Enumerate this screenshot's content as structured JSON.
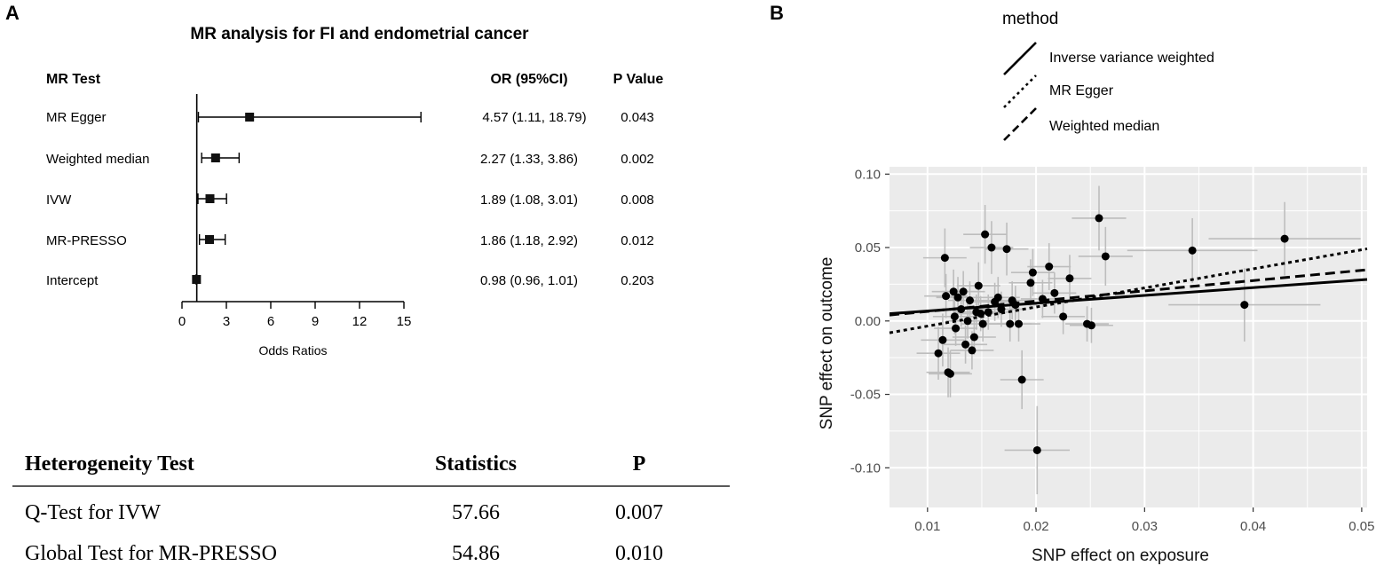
{
  "panel_a": {
    "letter": "A",
    "title": "MR analysis for FI and endometrial cancer",
    "headers": {
      "test": "MR Test",
      "or": "OR (95%CI)",
      "p": "P Value"
    },
    "x_ticks": [
      "0",
      "3",
      "6",
      "9",
      "12",
      "15"
    ],
    "x_label": "Odds Ratios"
  },
  "panel_b": {
    "letter": "B",
    "legend_title": "method",
    "legend": [
      {
        "label": "Inverse variance weighted",
        "dash": "solid"
      },
      {
        "label": "MR Egger",
        "dash": "dotted"
      },
      {
        "label": "Weighted median",
        "dash": "dashed"
      }
    ],
    "x_label": "SNP effect on exposure",
    "y_label": "SNP effect on outcome",
    "x_ticks": [
      "0.01",
      "0.02",
      "0.03",
      "0.04",
      "0.05"
    ],
    "y_ticks": [
      "0.10",
      "0.05",
      "0.00",
      "-0.05",
      "-0.10"
    ]
  },
  "heterogeneity": {
    "headers": {
      "test": "Heterogeneity Test",
      "stat": "Statistics",
      "p": "P"
    },
    "rows": [
      {
        "test": "Q-Test for IVW",
        "stat": "57.66",
        "p": "0.007"
      },
      {
        "test": "Global Test for MR-PRESSO",
        "stat": "54.86",
        "p": "0.010"
      }
    ]
  },
  "colors": {
    "panel_bg": "#ebebeb",
    "grid": "#ffffff",
    "point": "#000000",
    "errorbar": "#bdbdbd"
  },
  "chart_data": [
    {
      "type": "forest",
      "title": "MR analysis for FI and endometrial cancer",
      "xlabel": "Odds Ratios",
      "xlim": [
        0,
        15
      ],
      "reference_line": 1,
      "rows": [
        {
          "test": "MR Egger",
          "or": 4.57,
          "lo": 1.11,
          "hi": 18.79,
          "or_text": "4.57 (1.11, 18.79)",
          "p": "0.043"
        },
        {
          "test": "Weighted median",
          "or": 2.27,
          "lo": 1.33,
          "hi": 3.86,
          "or_text": "2.27 (1.33, 3.86)",
          "p": "0.002"
        },
        {
          "test": "IVW",
          "or": 1.89,
          "lo": 1.08,
          "hi": 3.01,
          "or_text": "1.89 (1.08, 3.01)",
          "p": "0.008"
        },
        {
          "test": "MR-PRESSO",
          "or": 1.86,
          "lo": 1.18,
          "hi": 2.92,
          "or_text": "1.86 (1.18, 2.92)",
          "p": "0.012"
        },
        {
          "test": "Intercept",
          "or": 0.98,
          "lo": 0.96,
          "hi": 1.01,
          "or_text": "0.98 (0.96, 1.01)",
          "p": "0.203"
        }
      ]
    },
    {
      "type": "scatter",
      "xlabel": "SNP effect on exposure",
      "ylabel": "SNP effect on outcome",
      "xlim": [
        0.0065,
        0.0505
      ],
      "ylim": [
        -0.127,
        0.105
      ],
      "x_ticks": [
        0.01,
        0.02,
        0.03,
        0.04,
        0.05
      ],
      "y_ticks": [
        0.1,
        0.05,
        0,
        -0.05,
        -0.1
      ],
      "lines": [
        {
          "method": "Inverse variance weighted",
          "dash": "solid",
          "slope": 0.53,
          "intercept": 0.0015
        },
        {
          "method": "MR Egger",
          "dash": "dotted",
          "slope": 1.3,
          "intercept": -0.0165
        },
        {
          "method": "Weighted median",
          "dash": "dashed",
          "slope": 0.7,
          "intercept": -0.0005
        }
      ],
      "points": [
        {
          "x": 0.011,
          "y": -0.022,
          "xe": 0.002,
          "ye": 0.018
        },
        {
          "x": 0.0114,
          "y": -0.013,
          "xe": 0.002,
          "ye": 0.018
        },
        {
          "x": 0.0116,
          "y": 0.043,
          "xe": 0.002,
          "ye": 0.02
        },
        {
          "x": 0.0117,
          "y": 0.017,
          "xe": 0.002,
          "ye": 0.015
        },
        {
          "x": 0.0119,
          "y": -0.035,
          "xe": 0.002,
          "ye": 0.017
        },
        {
          "x": 0.0121,
          "y": -0.036,
          "xe": 0.002,
          "ye": 0.016
        },
        {
          "x": 0.0124,
          "y": 0.02,
          "xe": 0.002,
          "ye": 0.015
        },
        {
          "x": 0.0125,
          "y": 0.003,
          "xe": 0.002,
          "ye": 0.012
        },
        {
          "x": 0.0126,
          "y": -0.005,
          "xe": 0.002,
          "ye": 0.012
        },
        {
          "x": 0.0128,
          "y": 0.016,
          "xe": 0.002,
          "ye": 0.014
        },
        {
          "x": 0.0131,
          "y": 0.008,
          "xe": 0.002,
          "ye": 0.012
        },
        {
          "x": 0.0133,
          "y": 0.02,
          "xe": 0.002,
          "ye": 0.014
        },
        {
          "x": 0.0135,
          "y": -0.016,
          "xe": 0.002,
          "ye": 0.013
        },
        {
          "x": 0.0137,
          "y": 0.0,
          "xe": 0.002,
          "ye": 0.012
        },
        {
          "x": 0.0139,
          "y": 0.014,
          "xe": 0.002,
          "ye": 0.013
        },
        {
          "x": 0.0141,
          "y": -0.02,
          "xe": 0.002,
          "ye": 0.013
        },
        {
          "x": 0.0143,
          "y": -0.011,
          "xe": 0.002,
          "ye": 0.012
        },
        {
          "x": 0.0145,
          "y": 0.006,
          "xe": 0.002,
          "ye": 0.012
        },
        {
          "x": 0.0147,
          "y": 0.024,
          "xe": 0.002,
          "ye": 0.016
        },
        {
          "x": 0.0149,
          "y": 0.005,
          "xe": 0.002,
          "ye": 0.012
        },
        {
          "x": 0.0151,
          "y": -0.002,
          "xe": 0.002,
          "ye": 0.012
        },
        {
          "x": 0.0153,
          "y": 0.059,
          "xe": 0.002,
          "ye": 0.02
        },
        {
          "x": 0.0156,
          "y": 0.006,
          "xe": 0.002,
          "ye": 0.012
        },
        {
          "x": 0.0159,
          "y": 0.05,
          "xe": 0.002,
          "ye": 0.018
        },
        {
          "x": 0.0162,
          "y": 0.013,
          "xe": 0.002,
          "ye": 0.013
        },
        {
          "x": 0.0165,
          "y": 0.016,
          "xe": 0.002,
          "ye": 0.014
        },
        {
          "x": 0.0168,
          "y": 0.008,
          "xe": 0.002,
          "ye": 0.012
        },
        {
          "x": 0.0173,
          "y": 0.049,
          "xe": 0.002,
          "ye": 0.018
        },
        {
          "x": 0.0176,
          "y": -0.002,
          "xe": 0.002,
          "ye": 0.012
        },
        {
          "x": 0.0178,
          "y": 0.014,
          "xe": 0.002,
          "ye": 0.013
        },
        {
          "x": 0.0181,
          "y": 0.011,
          "xe": 0.002,
          "ye": 0.013
        },
        {
          "x": 0.0184,
          "y": -0.002,
          "xe": 0.002,
          "ye": 0.012
        },
        {
          "x": 0.0187,
          "y": -0.04,
          "xe": 0.002,
          "ye": 0.02
        },
        {
          "x": 0.0195,
          "y": 0.026,
          "xe": 0.002,
          "ye": 0.016
        },
        {
          "x": 0.0197,
          "y": 0.033,
          "xe": 0.002,
          "ye": 0.016
        },
        {
          "x": 0.0201,
          "y": -0.088,
          "xe": 0.003,
          "ye": 0.03
        },
        {
          "x": 0.0206,
          "y": 0.015,
          "xe": 0.002,
          "ye": 0.013
        },
        {
          "x": 0.0212,
          "y": 0.037,
          "xe": 0.002,
          "ye": 0.016
        },
        {
          "x": 0.0217,
          "y": 0.019,
          "xe": 0.002,
          "ye": 0.014
        },
        {
          "x": 0.0225,
          "y": 0.003,
          "xe": 0.002,
          "ye": 0.012
        },
        {
          "x": 0.0231,
          "y": 0.029,
          "xe": 0.002,
          "ye": 0.016
        },
        {
          "x": 0.0247,
          "y": -0.002,
          "xe": 0.002,
          "ye": 0.012
        },
        {
          "x": 0.0251,
          "y": -0.003,
          "xe": 0.002,
          "ye": 0.012
        },
        {
          "x": 0.0258,
          "y": 0.07,
          "xe": 0.0025,
          "ye": 0.022
        },
        {
          "x": 0.0264,
          "y": 0.044,
          "xe": 0.0025,
          "ye": 0.02
        },
        {
          "x": 0.0344,
          "y": 0.048,
          "xe": 0.006,
          "ye": 0.022
        },
        {
          "x": 0.0392,
          "y": 0.011,
          "xe": 0.007,
          "ye": 0.025
        },
        {
          "x": 0.0429,
          "y": 0.056,
          "xe": 0.007,
          "ye": 0.025
        }
      ]
    }
  ]
}
